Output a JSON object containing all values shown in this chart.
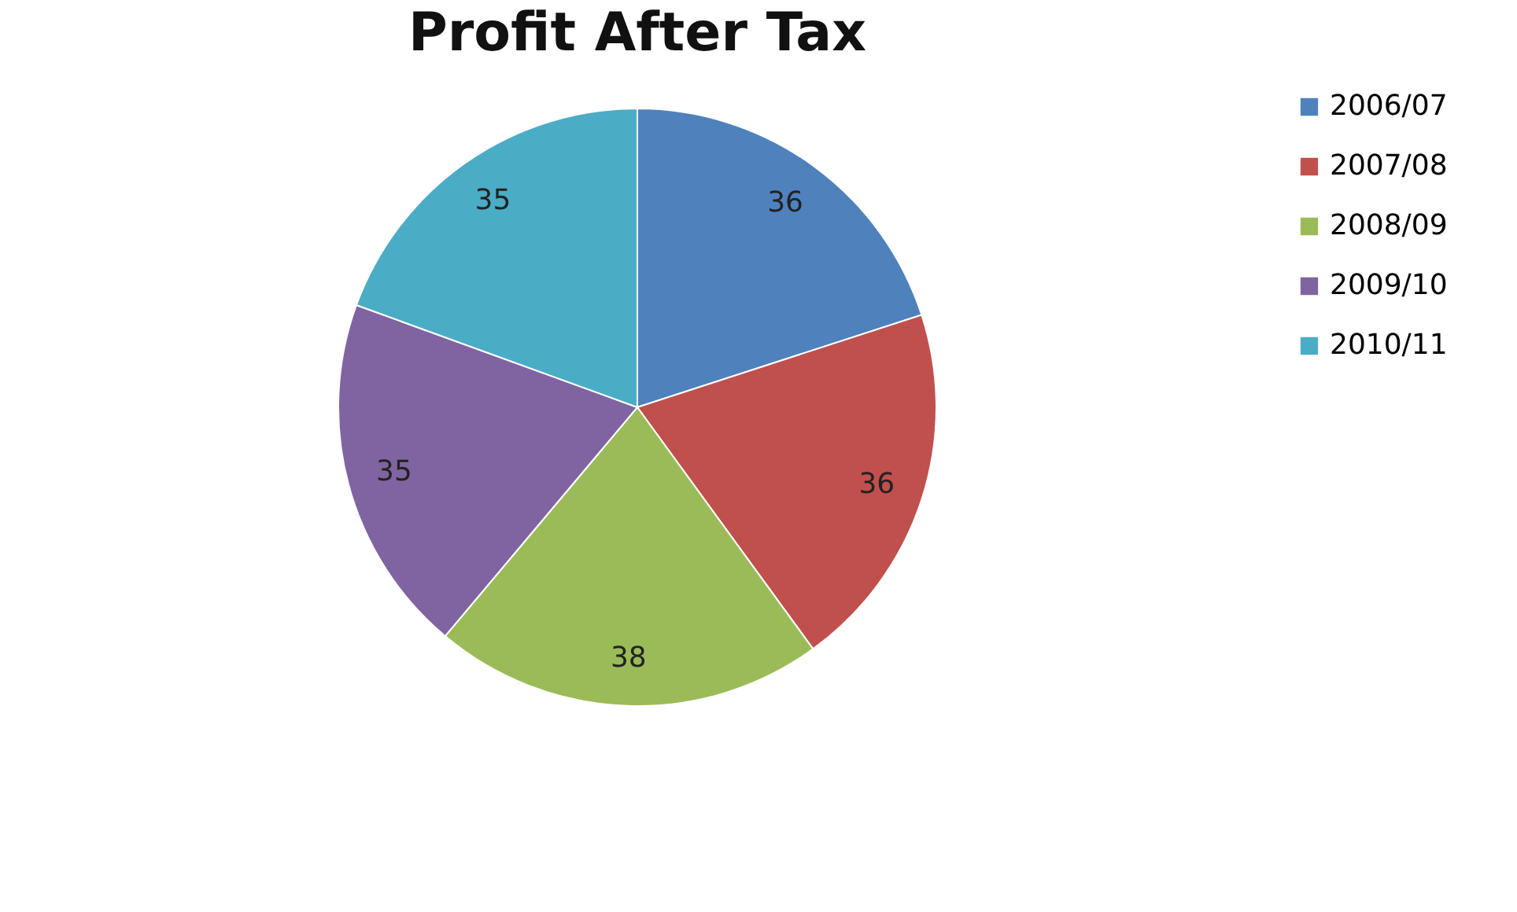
{
  "chart_data": {
    "type": "pie",
    "title": "Profit After Tax",
    "categories": [
      "2006/07",
      "2007/08",
      "2008/09",
      "2009/10",
      "2010/11"
    ],
    "values": [
      36,
      36,
      38,
      35,
      35
    ],
    "colors": [
      "#4f81bd",
      "#c0504d",
      "#9bbb59",
      "#8064a2",
      "#4bacc6"
    ],
    "data_labels": true,
    "legend": "right"
  }
}
